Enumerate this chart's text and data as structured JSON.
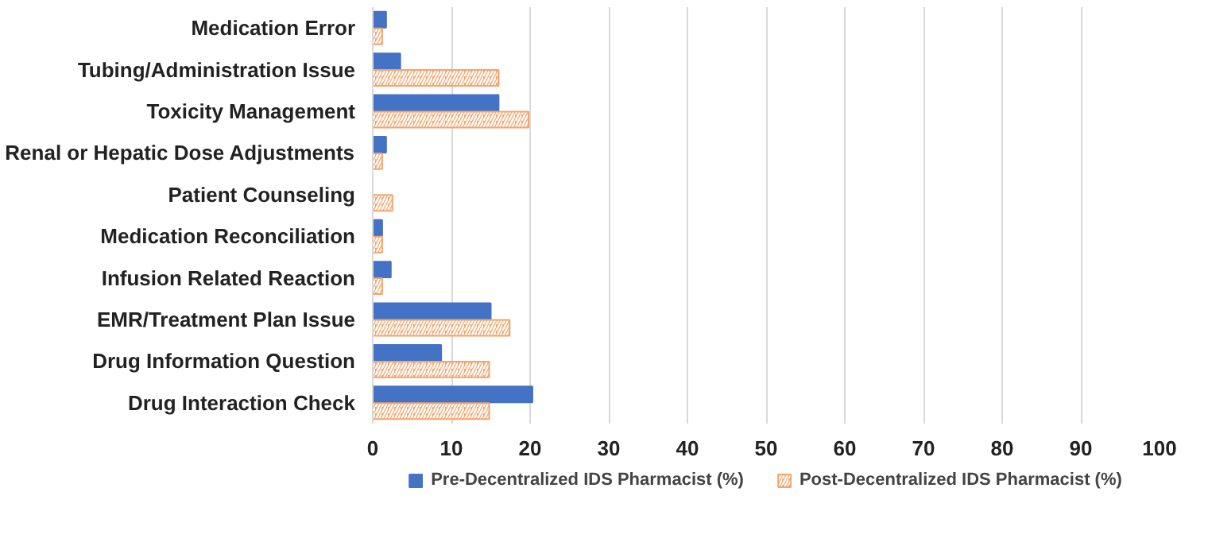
{
  "chart_data": {
    "type": "bar",
    "orientation": "horizontal",
    "categories": [
      "Medication Error",
      "Tubing/Administration Issue",
      "Toxicity Management",
      "Renal or Hepatic Dose Adjustments",
      "Patient Counseling",
      "Medication Reconciliation",
      "Infusion Related Reaction",
      "EMR/Treatment Plan Issue",
      "Drug Information Question",
      "Drug Interaction Check"
    ],
    "series": [
      {
        "name": "Pre-Decentralized IDS Pharmacist (%)",
        "color": "#4472c4",
        "values": [
          1.7,
          3.5,
          16,
          1.7,
          0,
          1.2,
          2.3,
          15,
          8.7,
          20.3
        ]
      },
      {
        "name": "Post-Decentralized IDS Pharmacist (%)",
        "color": "#f4a46c",
        "values": [
          1.2,
          16,
          19.8,
          1.2,
          2.5,
          1.2,
          1.2,
          17.4,
          14.8,
          14.8
        ]
      }
    ],
    "xlim": [
      0,
      100
    ],
    "xticks": [
      0,
      10,
      20,
      30,
      40,
      50,
      60,
      70,
      80,
      90,
      100
    ],
    "grid": "x",
    "legend": "bottom"
  }
}
